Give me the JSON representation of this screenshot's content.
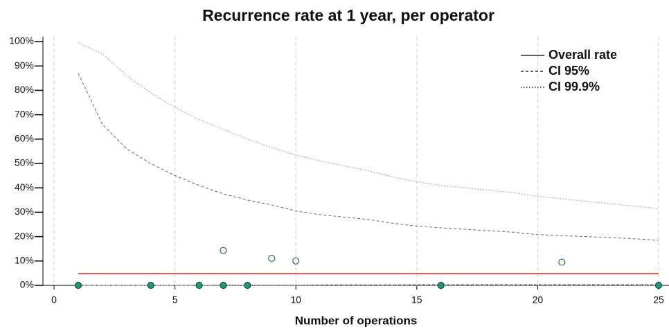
{
  "chart_data": {
    "type": "scatter",
    "title": "Recurrence rate at 1 year, per operator",
    "x_label": "Number of operations",
    "x": [
      1,
      4,
      6,
      7,
      7,
      8,
      9,
      10,
      16,
      21,
      25
    ],
    "values": [
      0,
      0,
      0,
      0,
      14.3,
      0,
      11.1,
      10,
      0,
      9.5,
      0
    ],
    "colors": [
      "#1f9a78",
      "#1f9a78",
      "#1f9a78",
      "#1f9a78",
      "#ffffcc",
      "#1f9a78",
      "#ffffcc",
      "#ffffcc",
      "#1f9a78",
      "#ffffcc",
      "#1f9a78"
    ],
    "lines": [
      {
        "name": "Overall rate",
        "color": "#e8412c",
        "style": "solid",
        "x": [
          1,
          25
        ],
        "upper": [
          4.8,
          4.8
        ]
      },
      {
        "name": "CI 95%",
        "color": "#666666",
        "style": "dashed",
        "x": [
          1,
          2,
          3,
          4,
          5,
          6,
          7,
          8,
          9,
          10,
          11,
          12,
          13,
          14,
          15,
          16,
          17,
          18,
          19,
          20,
          21,
          22,
          23,
          24,
          25
        ],
        "upper": [
          87,
          66,
          56,
          50,
          45,
          41,
          37.5,
          35,
          33,
          30.5,
          29,
          28,
          27,
          25.5,
          24.3,
          23.6,
          23,
          22.4,
          21.8,
          20.8,
          20.4,
          20,
          19.6,
          19.1,
          18.5
        ],
        "lower": [
          0,
          0,
          0,
          0,
          0,
          0,
          0.1,
          0.1,
          0.1,
          0.1,
          0.2,
          0.2,
          0.2,
          0.2,
          0.3,
          0.3,
          0.3,
          0.3,
          0.3,
          0.3,
          0.3,
          0.3,
          0.3,
          0.3,
          0.3
        ]
      },
      {
        "name": "CI 99.9%",
        "color": "#888888",
        "style": "dotted",
        "x": [
          1,
          2,
          3,
          4,
          5,
          6,
          7,
          8,
          9,
          10,
          11,
          12,
          13,
          14,
          15,
          16,
          17,
          18,
          19,
          20,
          21,
          22,
          23,
          24,
          25
        ],
        "upper": [
          99.5,
          95,
          86,
          79,
          73,
          68,
          64,
          60,
          56.5,
          53.5,
          51,
          49,
          47,
          44.5,
          42.5,
          41,
          40,
          39,
          38,
          36.5,
          35.5,
          34.5,
          33.5,
          32.5,
          31.5
        ],
        "lower": [
          0,
          0,
          0,
          0,
          0,
          0,
          0,
          0,
          0,
          0,
          0,
          0,
          0,
          0,
          0,
          0,
          0,
          0,
          0,
          0,
          0,
          0,
          0,
          0,
          0
        ]
      }
    ],
    "legend_color": "#000000",
    "legend_position": "top-right",
    "grid": true,
    "xlim": [
      -0.46,
      25.43
    ],
    "xticks": [
      0,
      5,
      10,
      15,
      20,
      25
    ],
    "ylim": [
      0,
      102
    ],
    "yticks": [
      {
        "value": 0,
        "label": "0%"
      },
      {
        "value": 10,
        "label": "10%"
      },
      {
        "value": 20,
        "label": "20%"
      },
      {
        "value": 30,
        "label": "30%"
      },
      {
        "value": 40,
        "label": "40%"
      },
      {
        "value": 50,
        "label": "50%"
      },
      {
        "value": 60,
        "label": "60%"
      },
      {
        "value": 70,
        "label": "70%"
      },
      {
        "value": 80,
        "label": "80%"
      },
      {
        "value": 90,
        "label": "90%"
      },
      {
        "value": 100,
        "label": "100%"
      }
    ]
  }
}
